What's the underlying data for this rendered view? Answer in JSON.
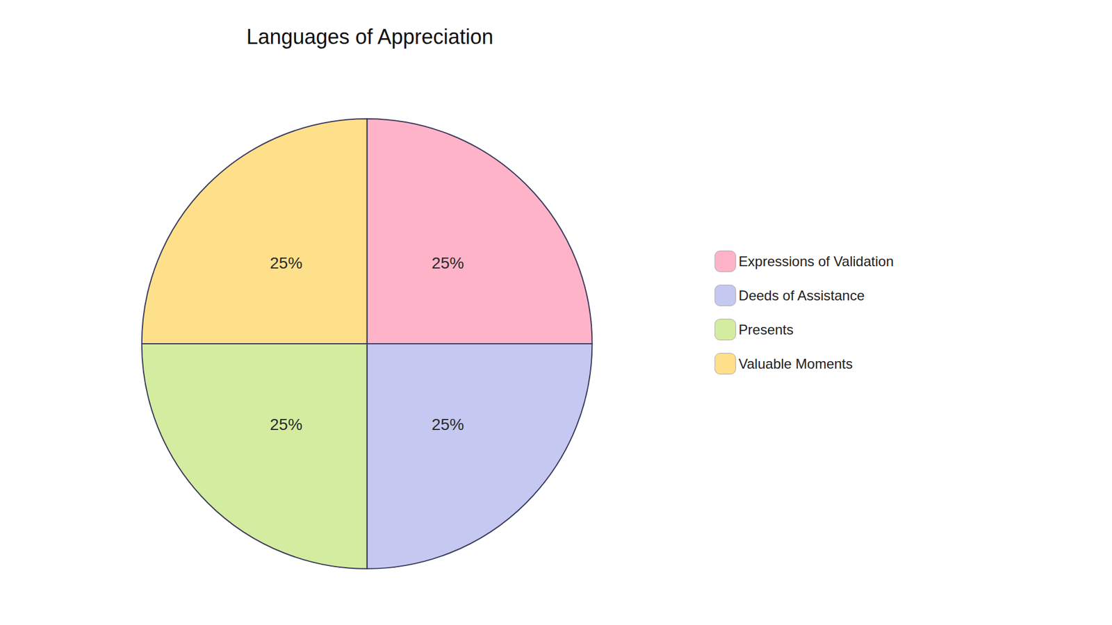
{
  "chart_data": {
    "type": "pie",
    "title": "Languages of Appreciation",
    "categories": [
      "Expressions of Validation",
      "Deeds of Assistance",
      "Presents",
      "Valuable Moments"
    ],
    "values": [
      25,
      25,
      25,
      25
    ],
    "value_labels": [
      "25%",
      "25%",
      "25%",
      "25%"
    ],
    "colors": [
      "#FFB3C8",
      "#C5C8F0",
      "#D4ECA0",
      "#FFE08A"
    ],
    "data_labels": true,
    "legend": "right"
  }
}
